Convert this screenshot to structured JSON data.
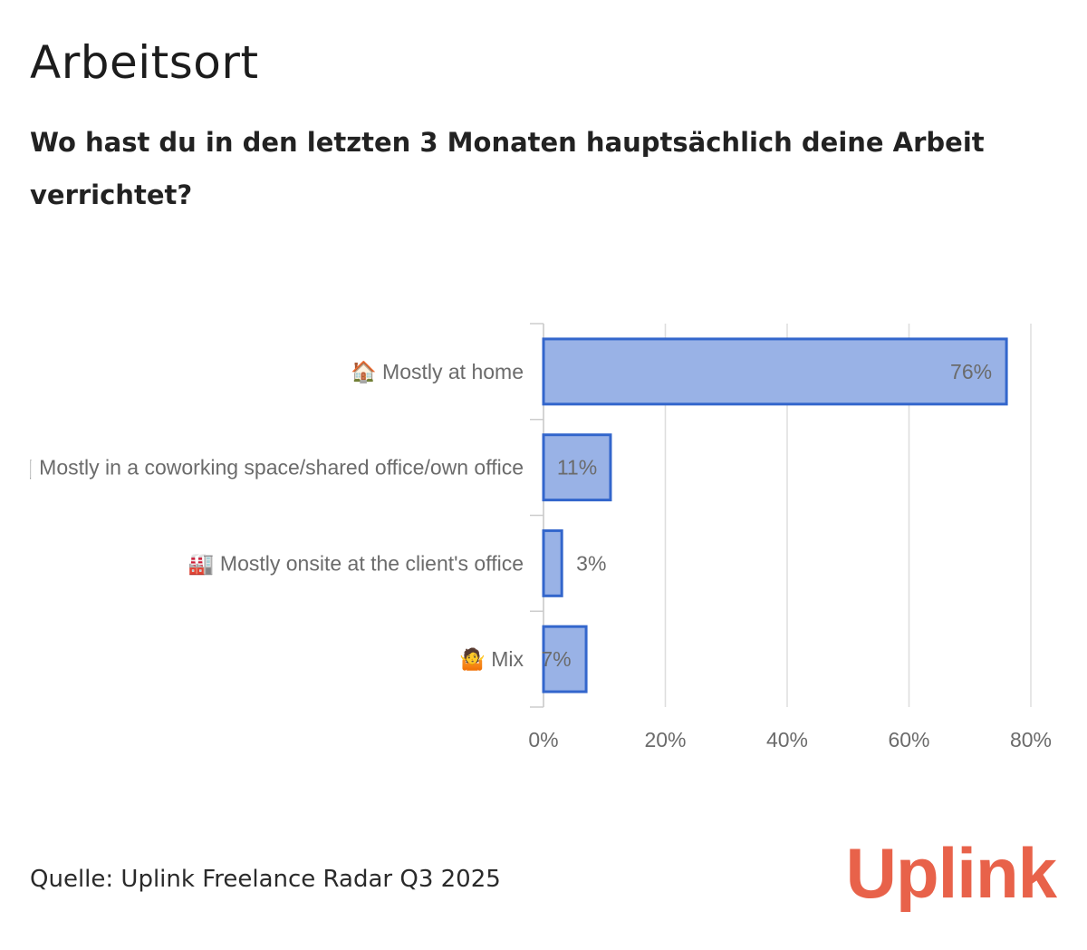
{
  "header": {
    "title": "Arbeitsort",
    "subtitle": "Wo hast du in den letzten 3 Monaten hauptsächlich deine Arbeit verrichtet?"
  },
  "chart_data": {
    "type": "bar",
    "orientation": "horizontal",
    "categories": [
      "🏠 Mostly at home",
      "🏢 Mostly in a coworking space/shared office/own office",
      "🏭 Mostly onsite at the client's office",
      "🤷 Mix"
    ],
    "values": [
      76,
      11,
      3,
      7
    ],
    "value_labels": [
      "76%",
      "11%",
      "3%",
      "7%"
    ],
    "xlim": [
      0,
      80
    ],
    "xticks": [
      0,
      20,
      40,
      60,
      80
    ],
    "xtick_labels": [
      "0%",
      "20%",
      "40%",
      "60%",
      "80%"
    ],
    "grid": true,
    "colors": {
      "bar_fill": "#99b2e6",
      "bar_stroke": "#3366cc",
      "grid": "#dddddd"
    }
  },
  "footer": {
    "source": "Quelle: Uplink Freelance Radar Q3 2025",
    "logo": "Uplink",
    "logo_color": "#e8624a"
  }
}
